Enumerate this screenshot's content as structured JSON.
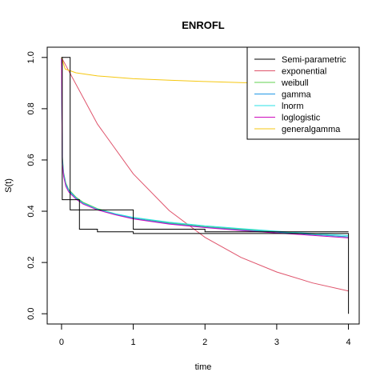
{
  "chart_data": {
    "type": "line",
    "title": "ENROFL",
    "xlabel": "time",
    "ylabel": "S(t)",
    "xlim": [
      -0.2,
      4.15
    ],
    "ylim": [
      -0.04,
      1.04
    ],
    "xticks": [
      0,
      1,
      2,
      3,
      4
    ],
    "yticks": [
      0.0,
      0.2,
      0.4,
      0.6,
      0.8,
      1.0
    ],
    "xtick_labels": [
      "0",
      "1",
      "2",
      "3",
      "4"
    ],
    "ytick_labels": [
      "0.0",
      "0.2",
      "0.4",
      "0.6",
      "0.8",
      "1.0"
    ],
    "grid": false,
    "legend_position": "top-right",
    "step_series": {
      "name": "Semi-parametric",
      "color": "#000000",
      "x": [
        0,
        0.01,
        0.01,
        0.12,
        0.12,
        0.25,
        0.25,
        0.5,
        0.5,
        1.0,
        1.0,
        2.0,
        2.0,
        4.0,
        4.0
      ],
      "y": [
        1.0,
        1.0,
        0.445,
        0.445,
        0.405,
        0.405,
        0.33,
        0.33,
        0.32,
        0.32,
        0.313,
        0.313,
        0.313,
        0.313,
        0.0
      ],
      "upper": [
        1.0,
        1.0,
        1.0,
        1.0,
        0.445,
        0.445,
        0.405,
        0.405,
        0.405,
        0.405,
        0.33,
        0.33,
        0.32,
        0.32,
        0.32
      ],
      "upper_x": [
        0.01,
        0.01,
        0.12,
        0.12,
        0.12,
        0.25,
        0.25,
        0.5,
        1.0,
        1.0,
        1.0,
        2.0,
        2.0,
        4.0,
        4.0
      ]
    },
    "series": [
      {
        "name": "exponential",
        "color": "#DF536B",
        "x": [
          0,
          0.5,
          1,
          1.5,
          2,
          2.5,
          3,
          3.5,
          4
        ],
        "y": [
          1.0,
          0.74,
          0.546,
          0.403,
          0.298,
          0.22,
          0.163,
          0.12,
          0.089
        ]
      },
      {
        "name": "weibull",
        "color": "#61D04F",
        "x": [
          0,
          0.01,
          0.03,
          0.06,
          0.1,
          0.2,
          0.3,
          0.5,
          0.75,
          1,
          1.5,
          2,
          2.5,
          3,
          3.5,
          4
        ],
        "y": [
          1.0,
          0.62,
          0.55,
          0.51,
          0.485,
          0.455,
          0.435,
          0.41,
          0.39,
          0.375,
          0.355,
          0.34,
          0.33,
          0.32,
          0.31,
          0.3
        ]
      },
      {
        "name": "gamma",
        "color": "#2297E6",
        "x": [
          0,
          0.01,
          0.03,
          0.06,
          0.1,
          0.2,
          0.3,
          0.5,
          0.75,
          1,
          1.5,
          2,
          2.5,
          3,
          3.5,
          4
        ],
        "y": [
          1.0,
          0.61,
          0.545,
          0.505,
          0.482,
          0.452,
          0.432,
          0.408,
          0.388,
          0.372,
          0.352,
          0.338,
          0.327,
          0.318,
          0.309,
          0.3
        ]
      },
      {
        "name": "lnorm",
        "color": "#28E2E5",
        "x": [
          0,
          0.01,
          0.03,
          0.06,
          0.1,
          0.2,
          0.3,
          0.5,
          0.75,
          1,
          1.5,
          2,
          2.5,
          3,
          3.5,
          4
        ],
        "y": [
          1.0,
          0.6,
          0.54,
          0.5,
          0.478,
          0.45,
          0.43,
          0.408,
          0.39,
          0.376,
          0.357,
          0.343,
          0.332,
          0.322,
          0.313,
          0.305
        ]
      },
      {
        "name": "loglogistic",
        "color": "#CD0BBC",
        "x": [
          0,
          0.01,
          0.03,
          0.06,
          0.1,
          0.2,
          0.3,
          0.5,
          0.75,
          1,
          1.5,
          2,
          2.5,
          3,
          3.5,
          4
        ],
        "y": [
          1.0,
          0.59,
          0.535,
          0.497,
          0.475,
          0.448,
          0.428,
          0.405,
          0.386,
          0.37,
          0.35,
          0.336,
          0.325,
          0.315,
          0.306,
          0.296
        ]
      },
      {
        "name": "generalgamma",
        "color": "#F5C710",
        "x": [
          0,
          0.05,
          0.2,
          0.5,
          1,
          1.5,
          2,
          2.5,
          3,
          3.5,
          4
        ],
        "y": [
          1.0,
          0.955,
          0.94,
          0.928,
          0.917,
          0.911,
          0.906,
          0.902,
          0.899,
          0.896,
          0.893
        ]
      }
    ]
  }
}
